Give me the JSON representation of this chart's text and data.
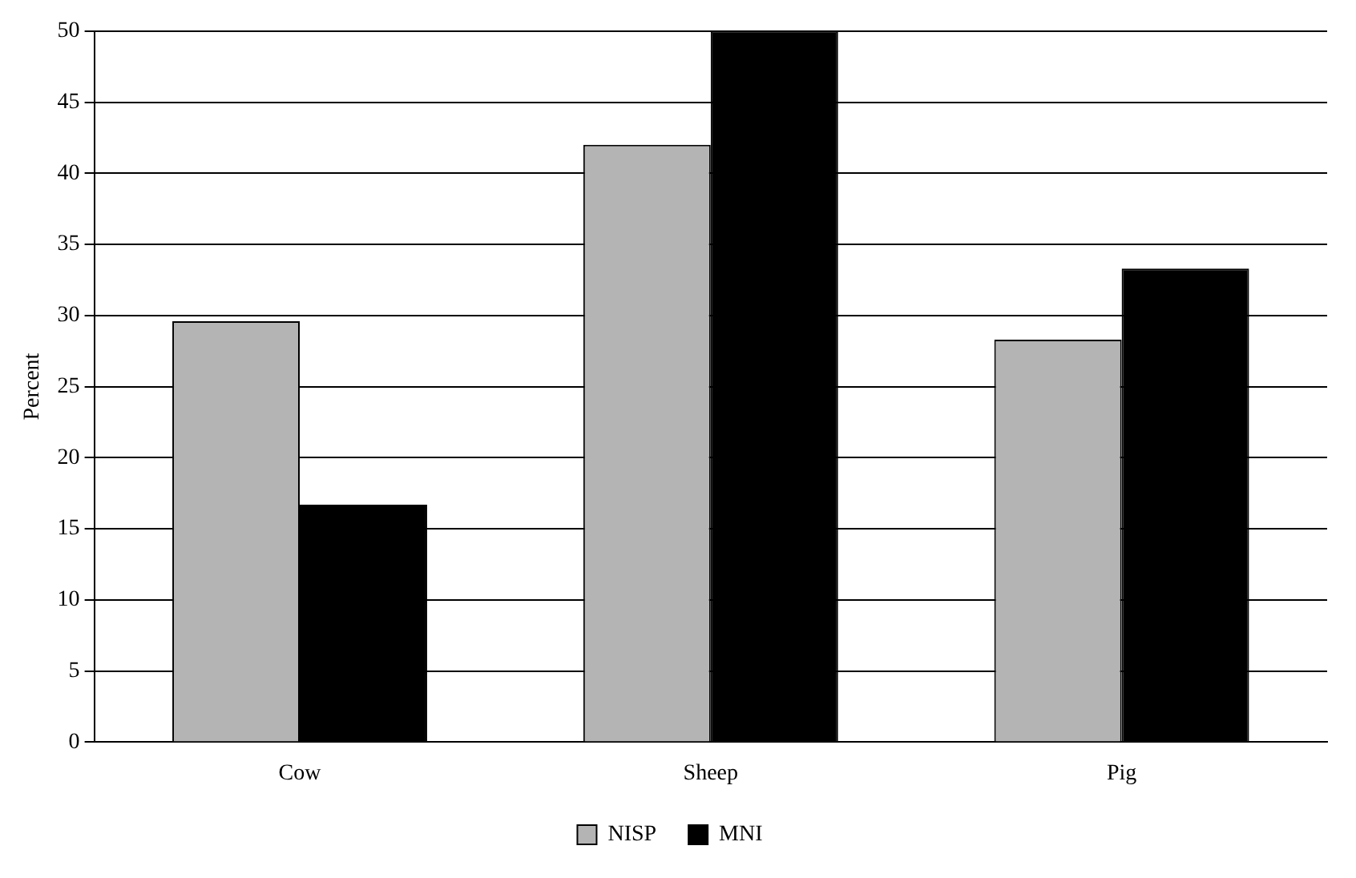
{
  "chart_data": {
    "type": "bar",
    "ylabel": "Percent",
    "categories": [
      "Cow",
      "Sheep",
      "Pig"
    ],
    "series": [
      {
        "name": "NISP",
        "color": "#b4b4b4",
        "values": [
          29.6,
          42,
          28.3
        ]
      },
      {
        "name": "MNI",
        "color": "#000000",
        "values": [
          16.7,
          50,
          33.3
        ]
      }
    ],
    "ylim": [
      0,
      50
    ],
    "yticks": [
      0,
      5,
      10,
      15,
      20,
      25,
      30,
      35,
      40,
      45,
      50
    ],
    "grid": "y",
    "legend": "bottom"
  }
}
